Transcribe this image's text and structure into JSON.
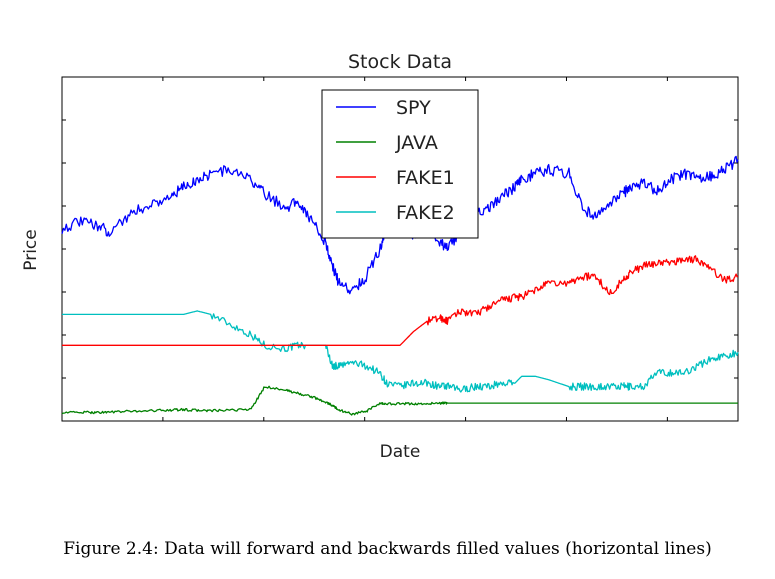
{
  "caption": "Figure 2.4: Data will forward and backwards filled values (horizontal lines)",
  "chart_data": {
    "type": "line",
    "title": "Stock Data",
    "xlabel": "Date",
    "ylabel": "Price",
    "xlim": [
      0,
      100
    ],
    "ylim": [
      0,
      100
    ],
    "grid": false,
    "legend": "top-center",
    "x": [
      0,
      3,
      5,
      7,
      10,
      13,
      16,
      18,
      20,
      22,
      25,
      28,
      30,
      33,
      35,
      37,
      39,
      40,
      41,
      43,
      45,
      47,
      48,
      50,
      52,
      54,
      56,
      57,
      59,
      61,
      63,
      65,
      67,
      68,
      70,
      72,
      75,
      77,
      79,
      81,
      83,
      84,
      86,
      88,
      90,
      92,
      94,
      96,
      98,
      100
    ],
    "series": [
      {
        "name": "SPY",
        "color": "#0000ff",
        "values": [
          56,
          58,
          57,
          55,
          60,
          63,
          65,
          68,
          70,
          72,
          73,
          70,
          66,
          62,
          64,
          58,
          52,
          45,
          40,
          38,
          42,
          50,
          57,
          60,
          54,
          56,
          52,
          50,
          55,
          60,
          62,
          65,
          68,
          70,
          72,
          73,
          72,
          62,
          59,
          63,
          66,
          68,
          69,
          67,
          70,
          72,
          71,
          71,
          73,
          76
        ]
      },
      {
        "name": "JAVA",
        "color": "#008000",
        "values": [
          2.5,
          2.5,
          2.5,
          2.6,
          2.8,
          3,
          3.2,
          3.3,
          3.1,
          3,
          3.1,
          3.5,
          10,
          9,
          8,
          7,
          5.5,
          4.5,
          3.2,
          2,
          2.8,
          5,
          5,
          5,
          5,
          5,
          5.2,
          5.2,
          5.2,
          5.2,
          5.2,
          5.2,
          5.2,
          5.2,
          5.2,
          5.2,
          5.2,
          5.2,
          5.2,
          5.2,
          5.2,
          5.2,
          5.2,
          5.2,
          5.2,
          5.2,
          5.2,
          5.2,
          5.2,
          5.2
        ]
      },
      {
        "name": "FAKE1",
        "color": "#ff0000",
        "values": [
          22,
          22,
          22,
          22,
          22,
          22,
          22,
          22,
          22,
          22,
          22,
          22,
          22,
          22,
          22,
          22,
          22,
          22,
          22,
          22,
          22,
          22,
          22,
          22,
          26,
          29,
          30,
          29,
          32,
          31,
          33,
          35,
          36,
          36,
          38,
          40,
          40,
          42,
          42,
          37,
          41,
          43,
          45,
          46,
          46,
          47,
          47,
          44,
          41,
          42
        ]
      },
      {
        "name": "FAKE2",
        "color": "#00bfbf",
        "values": [
          31,
          31,
          31,
          31,
          31,
          31,
          31,
          31,
          32,
          31,
          28,
          25,
          22,
          21,
          22,
          22,
          22,
          16,
          16,
          17,
          16,
          14,
          11,
          10,
          11,
          11,
          10,
          10,
          9,
          10,
          10,
          11,
          11,
          13,
          13,
          12,
          10,
          10,
          10,
          10,
          10,
          10,
          10,
          14,
          14,
          14,
          16,
          18,
          19,
          20
        ]
      }
    ]
  }
}
